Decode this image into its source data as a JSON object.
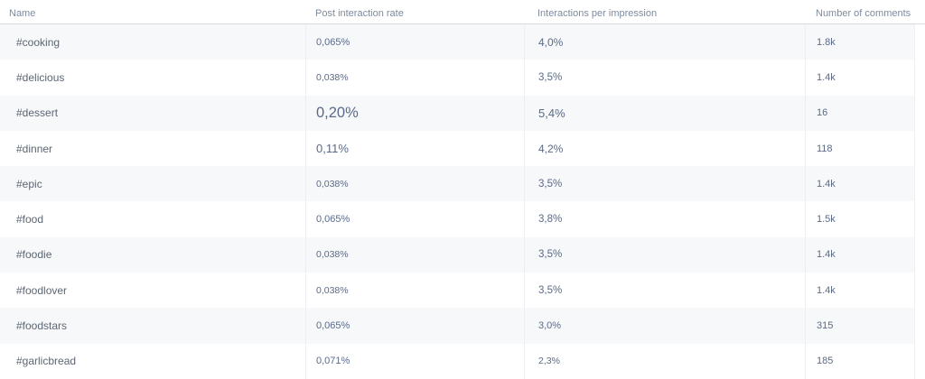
{
  "colors": {
    "page_bg": "#ffffff",
    "row_stripe": "#f7f8fa",
    "header_border": "#d8dbdf",
    "column_divider": "#edeff2",
    "header_text": "#7e8b9e",
    "name_text": "#5c6673",
    "value_text": "#5a6a88"
  },
  "table": {
    "columns": [
      {
        "label": "Name"
      },
      {
        "label": "Post interaction rate"
      },
      {
        "label": "Interactions per impression"
      },
      {
        "label": "Number of comments"
      }
    ],
    "rows": [
      {
        "name": "#cooking",
        "post_interaction_rate": "0,065%",
        "pir_size": 11,
        "interactions_per_impression": "4,0%",
        "ipi_size": 12,
        "comments": "1.8k"
      },
      {
        "name": "#delicious",
        "post_interaction_rate": "0,038%",
        "pir_size": 10.5,
        "interactions_per_impression": "3,5%",
        "ipi_size": 11.5,
        "comments": "1.4k"
      },
      {
        "name": "#dessert",
        "post_interaction_rate": "0,20%",
        "pir_size": 16.5,
        "interactions_per_impression": "5,4%",
        "ipi_size": 13,
        "comments": "16"
      },
      {
        "name": "#dinner",
        "post_interaction_rate": "0,11%",
        "pir_size": 13,
        "interactions_per_impression": "4,2%",
        "ipi_size": 12,
        "comments": "118"
      },
      {
        "name": "#epic",
        "post_interaction_rate": "0,038%",
        "pir_size": 10.5,
        "interactions_per_impression": "3,5%",
        "ipi_size": 11.5,
        "comments": "1.4k"
      },
      {
        "name": "#food",
        "post_interaction_rate": "0,065%",
        "pir_size": 11,
        "interactions_per_impression": "3,8%",
        "ipi_size": 11.5,
        "comments": "1.5k"
      },
      {
        "name": "#foodie",
        "post_interaction_rate": "0,038%",
        "pir_size": 10.5,
        "interactions_per_impression": "3,5%",
        "ipi_size": 11.5,
        "comments": "1.4k"
      },
      {
        "name": "#foodlover",
        "post_interaction_rate": "0,038%",
        "pir_size": 10.5,
        "interactions_per_impression": "3,5%",
        "ipi_size": 11.5,
        "comments": "1.4k"
      },
      {
        "name": "#foodstars",
        "post_interaction_rate": "0,065%",
        "pir_size": 11,
        "interactions_per_impression": "3,0%",
        "ipi_size": 11,
        "comments": "315"
      },
      {
        "name": "#garlicbread",
        "post_interaction_rate": "0,071%",
        "pir_size": 11,
        "interactions_per_impression": "2,3%",
        "ipi_size": 10.5,
        "comments": "185"
      }
    ]
  }
}
